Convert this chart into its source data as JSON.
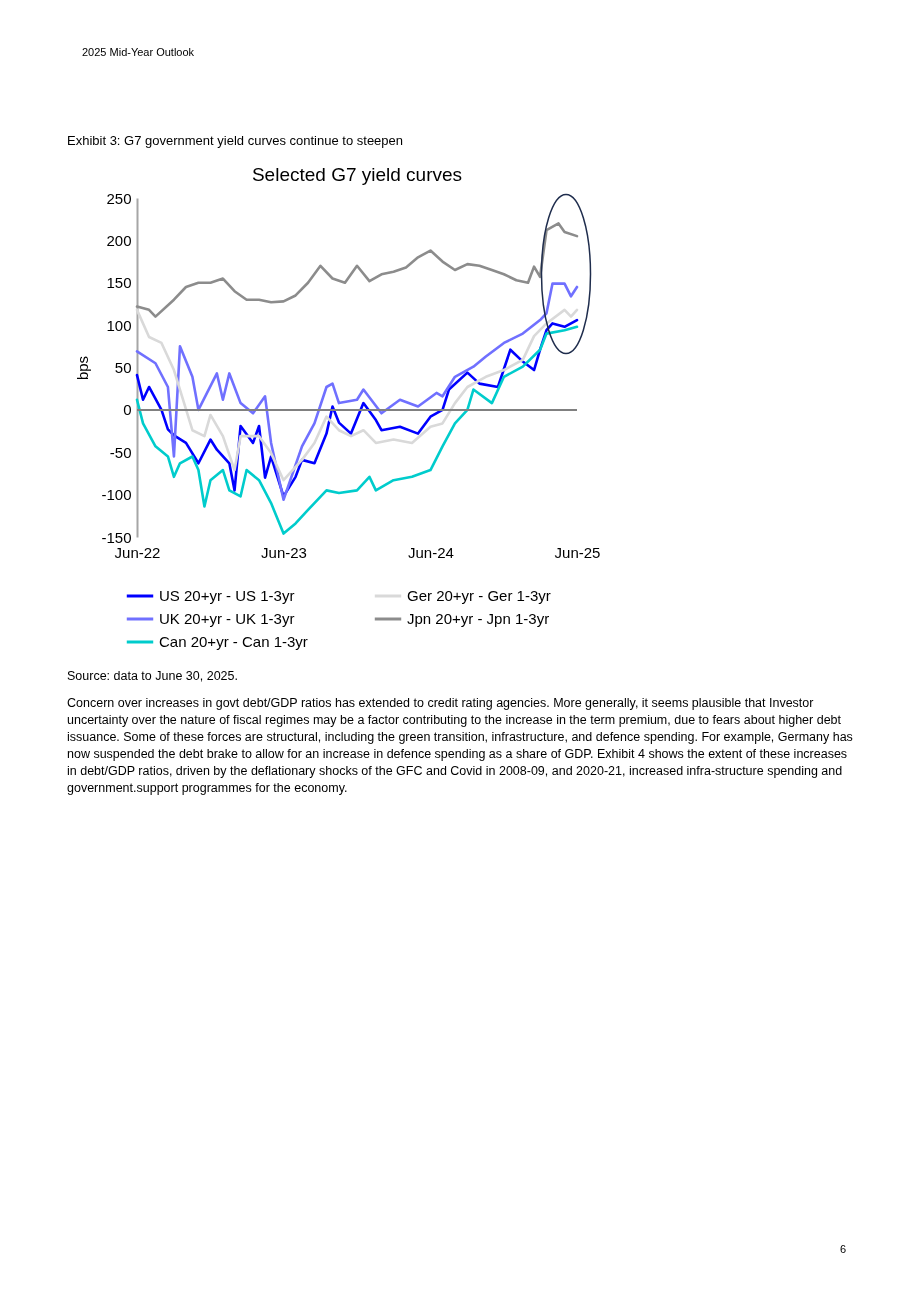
{
  "chart_data": {
    "type": "line",
    "title": "Selected G7 yield curves",
    "ylabel": "bps",
    "legend": "bottom",
    "line_style": "solid",
    "ylim": [
      -150,
      250
    ],
    "yticks": [
      -150,
      -100,
      -50,
      0,
      50,
      100,
      150,
      200,
      250
    ],
    "xlim": [
      "2022-06-30",
      "2025-06-30"
    ],
    "xticks": [
      {
        "value": "2022-06-30",
        "label": "Jun-22"
      },
      {
        "value": "2023-06-30",
        "label": "Jun-23"
      },
      {
        "value": "2024-06-30",
        "label": "Jun-24"
      },
      {
        "value": "2025-06-30",
        "label": "Jun-25"
      }
    ],
    "ref_lines": [
      {
        "axis": "y",
        "value": 0,
        "color": "#808080"
      }
    ],
    "annotations": [
      "2025 Mid-Year Outlook",
      "Exhibit 3: G7 government yield curves continue to steepen",
      "Source: data to June 30, 2025.",
      "Concern over increases in govt debt/GDP ratios has extended to credit rating agencies. More generally, it seems plausible that Investor uncertainty over the nature of fiscal regimes may be a factor contributing to the increase in the term premium, due to fears about higher debt issuance. Some of these forces are structural, including the green transition, infrastructure, and defence spending. For example, Germany has now suspended the debt brake to allow for an increase in defence spending as a share of GDP. Exhibit 4 shows the extent of these increases in debt/GDP ratios, driven by the deflationary shocks of the GFC and Covid in 2008-09, and 2020-21, increased infra-structure spending and government.support programmes for the economy.",
      "6"
    ],
    "series": [
      {
        "name": "US 20+yr - US 1-3yr",
        "color": "#0000ff",
        "x": [
          "2022-06-30",
          "2022-07-15",
          "2022-07-30",
          "2022-08-30",
          "2022-09-15",
          "2022-09-30",
          "2022-10-30",
          "2022-11-30",
          "2022-12-30",
          "2023-01-15",
          "2023-02-15",
          "2023-02-28",
          "2023-03-15",
          "2023-04-15",
          "2023-04-30",
          "2023-05-15",
          "2023-05-30",
          "2023-06-30",
          "2023-07-30",
          "2023-08-15",
          "2023-09-15",
          "2023-10-15",
          "2023-10-30",
          "2023-11-15",
          "2023-12-15",
          "2024-01-15",
          "2024-02-15",
          "2024-02-29",
          "2024-04-15",
          "2024-05-30",
          "2024-06-30",
          "2024-07-30",
          "2024-08-15",
          "2024-09-30",
          "2024-10-30",
          "2024-12-15",
          "2025-01-15",
          "2025-02-15",
          "2025-03-15",
          "2025-03-30",
          "2025-04-15",
          "2025-04-30",
          "2025-05-30",
          "2025-06-30"
        ],
        "values": [
          41,
          12,
          27,
          0,
          -23,
          -30,
          -39,
          -63,
          -35,
          -47,
          -63,
          -95,
          -19,
          -39,
          -19,
          -80,
          -55,
          -102,
          -79,
          -59,
          -63,
          -28,
          4,
          -15,
          -28,
          8,
          -12,
          -24,
          -20,
          -28,
          -8,
          0,
          24,
          44,
          31,
          27,
          71,
          57,
          47,
          71,
          94,
          102,
          98,
          106
        ]
      },
      {
        "name": "UK 20+yr - UK 1-3yr",
        "color": "#7070ff",
        "x": [
          "2022-06-30",
          "2022-08-15",
          "2022-09-15",
          "2022-09-30",
          "2022-10-15",
          "2022-11-15",
          "2022-11-30",
          "2023-01-15",
          "2023-01-30",
          "2023-02-15",
          "2023-03-15",
          "2023-04-15",
          "2023-05-15",
          "2023-05-30",
          "2023-06-30",
          "2023-08-15",
          "2023-09-15",
          "2023-10-15",
          "2023-10-30",
          "2023-11-15",
          "2023-12-30",
          "2024-01-15",
          "2024-02-29",
          "2024-04-15",
          "2024-05-30",
          "2024-07-15",
          "2024-07-30",
          "2024-08-30",
          "2024-10-15",
          "2024-11-15",
          "2024-12-30",
          "2025-02-15",
          "2025-03-30",
          "2025-04-15",
          "2025-04-30",
          "2025-05-30",
          "2025-06-15",
          "2025-06-30"
        ],
        "values": [
          69,
          55,
          27,
          -55,
          75,
          39,
          0,
          43,
          12,
          43,
          8,
          -4,
          16,
          -39,
          -106,
          -43,
          -16,
          27,
          31,
          8,
          12,
          24,
          -4,
          12,
          4,
          20,
          16,
          39,
          51,
          63,
          79,
          90,
          106,
          114,
          149,
          149,
          134,
          145
        ]
      },
      {
        "name": "Can 20+yr - Can 1-3yr",
        "color": "#00cccc",
        "x": [
          "2022-06-30",
          "2022-07-15",
          "2022-08-15",
          "2022-09-15",
          "2022-09-30",
          "2022-10-15",
          "2022-11-15",
          "2022-11-30",
          "2022-12-15",
          "2022-12-30",
          "2023-01-30",
          "2023-02-15",
          "2023-03-15",
          "2023-03-30",
          "2023-04-30",
          "2023-05-30",
          "2023-06-30",
          "2023-07-30",
          "2023-08-30",
          "2023-10-15",
          "2023-11-15",
          "2023-12-30",
          "2024-01-30",
          "2024-02-15",
          "2024-03-30",
          "2024-05-15",
          "2024-06-30",
          "2024-07-30",
          "2024-08-30",
          "2024-09-30",
          "2024-10-15",
          "2024-11-30",
          "2024-12-30",
          "2025-02-15",
          "2025-03-30",
          "2025-04-15",
          "2025-05-30",
          "2025-06-30"
        ],
        "values": [
          12,
          -16,
          -43,
          -55,
          -79,
          -63,
          -55,
          -71,
          -114,
          -83,
          -71,
          -95,
          -102,
          -71,
          -83,
          -110,
          -146,
          -134,
          -118,
          -95,
          -98,
          -95,
          -79,
          -95,
          -83,
          -79,
          -71,
          -43,
          -16,
          0,
          24,
          8,
          39,
          51,
          71,
          90,
          94,
          98
        ]
      },
      {
        "name": "Ger 20+yr - Ger 1-3yr",
        "color": "#d9d9d9",
        "x": [
          "2022-06-30",
          "2022-07-30",
          "2022-08-30",
          "2022-09-30",
          "2022-10-15",
          "2022-11-15",
          "2022-12-15",
          "2022-12-30",
          "2023-01-30",
          "2023-02-28",
          "2023-03-15",
          "2023-04-30",
          "2023-05-30",
          "2023-06-30",
          "2023-08-15",
          "2023-09-15",
          "2023-10-15",
          "2023-11-15",
          "2023-12-15",
          "2024-01-15",
          "2024-02-15",
          "2024-03-30",
          "2024-05-15",
          "2024-06-30",
          "2024-07-30",
          "2024-08-30",
          "2024-09-30",
          "2024-11-15",
          "2024-12-30",
          "2025-02-15",
          "2025-03-15",
          "2025-04-15",
          "2025-05-30",
          "2025-06-15",
          "2025-06-30"
        ],
        "values": [
          118,
          86,
          79,
          47,
          24,
          -24,
          -31,
          -6,
          -31,
          -71,
          -31,
          -31,
          -51,
          -83,
          -59,
          -39,
          -8,
          -24,
          -31,
          -24,
          -39,
          -35,
          -39,
          -20,
          -16,
          8,
          27,
          39,
          47,
          59,
          87,
          102,
          118,
          110,
          118
        ]
      },
      {
        "name": "Jpn 20+yr - Jpn 1-3yr",
        "color": "#8c8c8c",
        "x": [
          "2022-06-30",
          "2022-07-30",
          "2022-08-15",
          "2022-09-30",
          "2022-10-30",
          "2022-11-30",
          "2022-12-30",
          "2023-01-30",
          "2023-02-28",
          "2023-03-30",
          "2023-04-30",
          "2023-05-30",
          "2023-06-30",
          "2023-07-30",
          "2023-08-30",
          "2023-09-30",
          "2023-10-30",
          "2023-11-30",
          "2023-12-30",
          "2024-01-30",
          "2024-02-29",
          "2024-03-30",
          "2024-04-30",
          "2024-05-30",
          "2024-06-30",
          "2024-07-30",
          "2024-08-30",
          "2024-09-30",
          "2024-10-30",
          "2024-11-30",
          "2024-12-30",
          "2025-01-30",
          "2025-02-28",
          "2025-03-15",
          "2025-03-30",
          "2025-04-15",
          "2025-05-15",
          "2025-05-30",
          "2025-06-30"
        ],
        "values": [
          122,
          118,
          110,
          130,
          145,
          150,
          150,
          155,
          140,
          130,
          130,
          127,
          128,
          135,
          150,
          170,
          155,
          150,
          170,
          152,
          160,
          163,
          168,
          180,
          188,
          175,
          165,
          172,
          170,
          165,
          160,
          153,
          150,
          169,
          157,
          212,
          220,
          210,
          205
        ]
      }
    ]
  }
}
